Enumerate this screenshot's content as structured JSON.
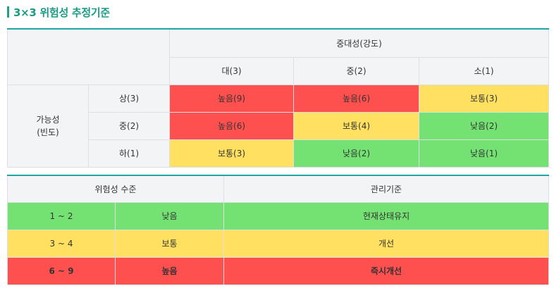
{
  "title": "3×3 위험성 추정기준",
  "colors": {
    "accent": "#1a9b84",
    "high": "#ff5050",
    "medium": "#ffe060",
    "low": "#73e273",
    "header": "#f3f4f6"
  },
  "matrix": {
    "severity_header": "중대성(강도)",
    "severity_levels": [
      "대(3)",
      "중(2)",
      "소(1)"
    ],
    "likelihood_header": "가능성\n(빈도)",
    "rows": [
      {
        "label": "상(3)",
        "cells": [
          {
            "text": "높음(9)",
            "level": "red"
          },
          {
            "text": "높음(6)",
            "level": "red"
          },
          {
            "text": "보통(3)",
            "level": "yellow"
          }
        ]
      },
      {
        "label": "중(2)",
        "cells": [
          {
            "text": "높음(6)",
            "level": "red"
          },
          {
            "text": "보통(4)",
            "level": "yellow"
          },
          {
            "text": "낮음(2)",
            "level": "green"
          }
        ]
      },
      {
        "label": "하(1)",
        "cells": [
          {
            "text": "보통(3)",
            "level": "yellow"
          },
          {
            "text": "낮음(2)",
            "level": "green"
          },
          {
            "text": "낮음(1)",
            "level": "green"
          }
        ]
      }
    ]
  },
  "level_table": {
    "header_level": "위험성 수준",
    "header_criteria": "관리기준",
    "rows": [
      {
        "range": "1 ~ 2",
        "grade": "낮음",
        "criteria": "현재상태유지",
        "level": "green"
      },
      {
        "range": "3 ~ 4",
        "grade": "보통",
        "criteria": "개선",
        "level": "yellow"
      },
      {
        "range": "6 ~ 9",
        "grade": "높음",
        "criteria": "즉시개선",
        "level": "red"
      }
    ]
  }
}
